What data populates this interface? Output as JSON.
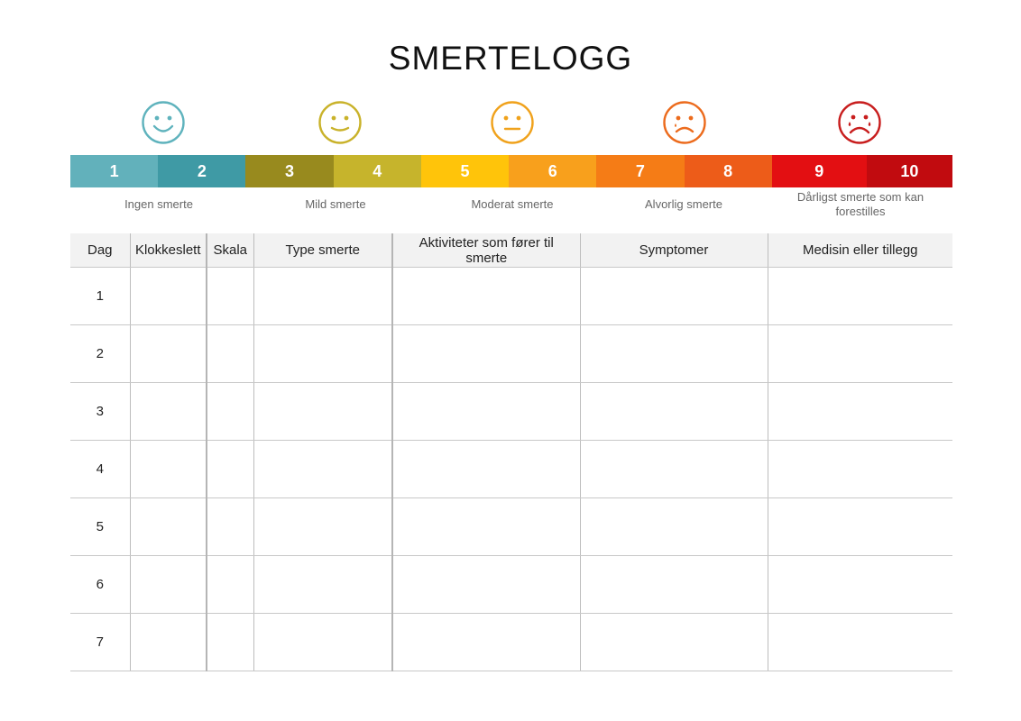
{
  "title": "SMERTELOGG",
  "faces": [
    {
      "icon": "happy-face-icon",
      "color": "#5fb3bd"
    },
    {
      "icon": "slightly-happy-face-icon",
      "color": "#c9b22a"
    },
    {
      "icon": "neutral-face-icon",
      "color": "#f0a21c"
    },
    {
      "icon": "sad-face-icon",
      "color": "#ec6b1d"
    },
    {
      "icon": "crying-face-icon",
      "color": "#c81e1e"
    }
  ],
  "scale": [
    {
      "label": "1",
      "color": "#62b1bb"
    },
    {
      "label": "2",
      "color": "#3f9aa5"
    },
    {
      "label": "3",
      "color": "#988a1e"
    },
    {
      "label": "4",
      "color": "#c6b42c"
    },
    {
      "label": "5",
      "color": "#ffc40a"
    },
    {
      "label": "6",
      "color": "#f8a01c"
    },
    {
      "label": "7",
      "color": "#f57c16"
    },
    {
      "label": "8",
      "color": "#ed5c19"
    },
    {
      "label": "9",
      "color": "#e30f12"
    },
    {
      "label": "10",
      "color": "#c10b0f"
    }
  ],
  "levels": [
    "Ingen smerte",
    "Mild smerte",
    "Moderat smerte",
    "Alvorlig smerte",
    "Dårligst smerte som kan forestilles"
  ],
  "table": {
    "headers": [
      "Dag",
      "Klokkeslett",
      "Skala",
      "Type smerte",
      "Aktiviteter som fører til smerte",
      "Symptomer",
      "Medisin eller tillegg"
    ],
    "days": [
      "1",
      "2",
      "3",
      "4",
      "5",
      "6",
      "7"
    ]
  }
}
